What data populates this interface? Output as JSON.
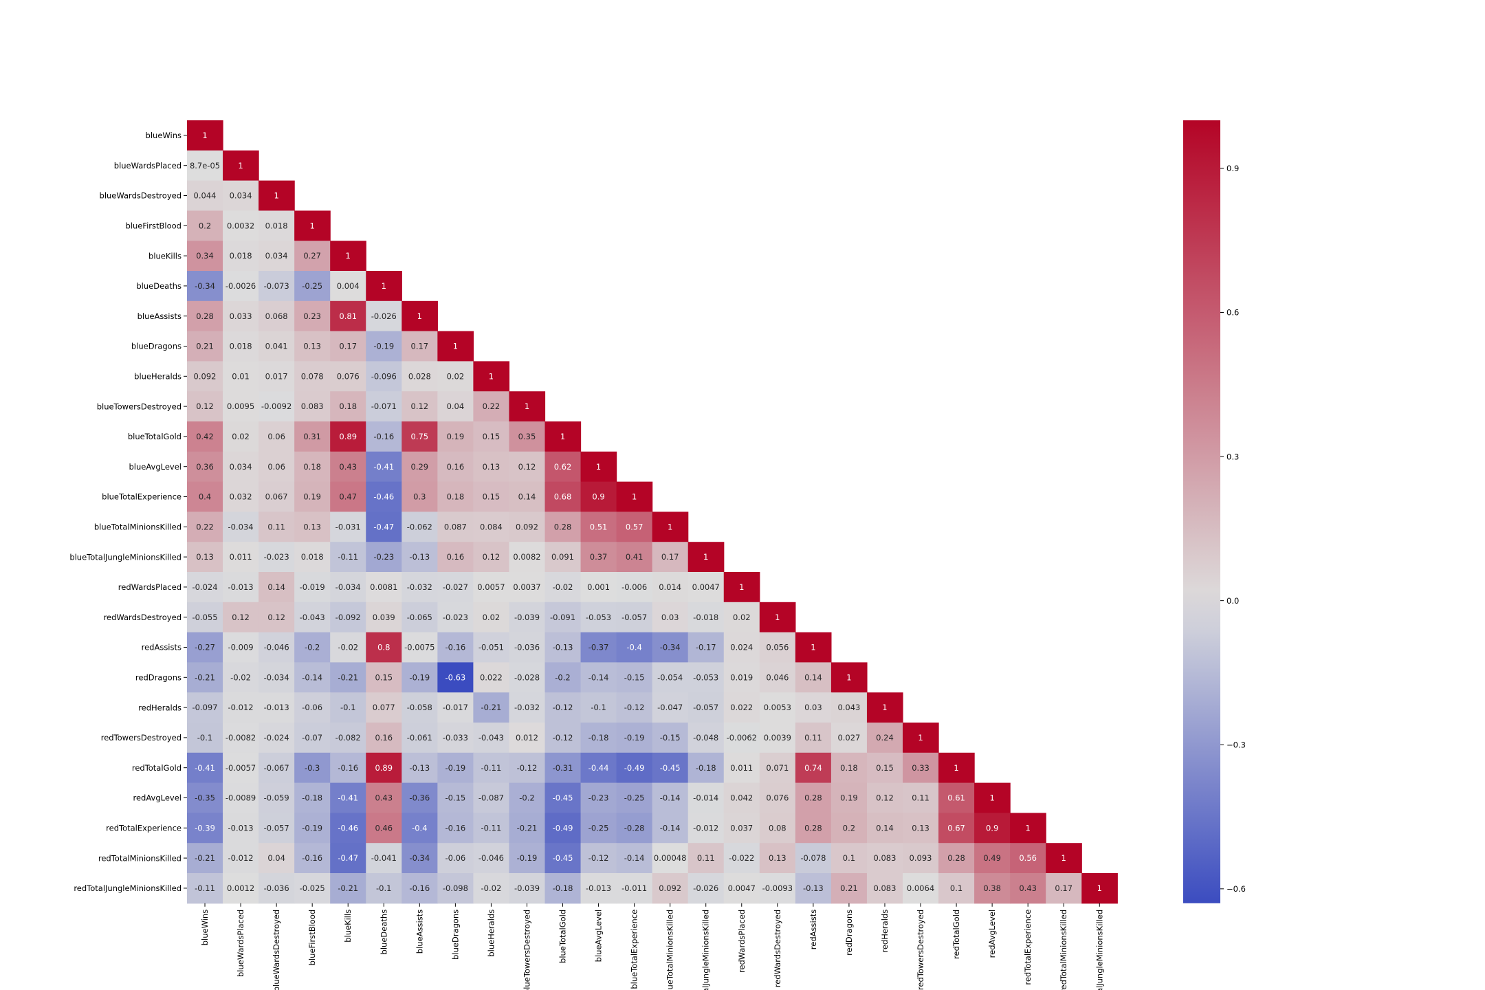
{
  "chart_data": {
    "type": "heatmap",
    "title": "",
    "xlabel": "",
    "ylabel": "",
    "mask": "upper-triangle",
    "colormap": "coolwarm",
    "colors": {
      "low": "#3b4cc0",
      "mid": "#dddddd",
      "high": "#b40426"
    },
    "color_range": [
      -0.63,
      1.0
    ],
    "colorbar_ticks": [
      {
        "value": 0.9,
        "label": "0.9"
      },
      {
        "value": 0.6,
        "label": "0.6"
      },
      {
        "value": 0.3,
        "label": "0.3"
      },
      {
        "value": 0.0,
        "label": "0.0"
      },
      {
        "value": -0.3,
        "label": "−0.3"
      },
      {
        "value": -0.6,
        "label": "−0.6"
      }
    ],
    "labels": [
      "blueWins",
      "blueWardsPlaced",
      "blueWardsDestroyed",
      "blueFirstBlood",
      "blueKills",
      "blueDeaths",
      "blueAssists",
      "blueDragons",
      "blueHeralds",
      "blueTowersDestroyed",
      "blueTotalGold",
      "blueAvgLevel",
      "blueTotalExperience",
      "blueTotalMinionsKilled",
      "blueTotalJungleMinionsKilled",
      "redWardsPlaced",
      "redWardsDestroyed",
      "redAssists",
      "redDragons",
      "redHeralds",
      "redTowersDestroyed",
      "redTotalGold",
      "redAvgLevel",
      "redTotalExperience",
      "redTotalMinionsKilled",
      "redTotalJungleMinionsKilled"
    ],
    "matrix": [
      [
        "1"
      ],
      [
        "8.7e-05",
        "1"
      ],
      [
        "0.044",
        "0.034",
        "1"
      ],
      [
        "0.2",
        "0.0032",
        "0.018",
        "1"
      ],
      [
        "0.34",
        "0.018",
        "0.034",
        "0.27",
        "1"
      ],
      [
        "-0.34",
        "-0.0026",
        "-0.073",
        "-0.25",
        "0.004",
        "1"
      ],
      [
        "0.28",
        "0.033",
        "0.068",
        "0.23",
        "0.81",
        "-0.026",
        "1"
      ],
      [
        "0.21",
        "0.018",
        "0.041",
        "0.13",
        "0.17",
        "-0.19",
        "0.17",
        "1"
      ],
      [
        "0.092",
        "0.01",
        "0.017",
        "0.078",
        "0.076",
        "-0.096",
        "0.028",
        "0.02",
        "1"
      ],
      [
        "0.12",
        "0.0095",
        "-0.0092",
        "0.083",
        "0.18",
        "-0.071",
        "0.12",
        "0.04",
        "0.22",
        "1"
      ],
      [
        "0.42",
        "0.02",
        "0.06",
        "0.31",
        "0.89",
        "-0.16",
        "0.75",
        "0.19",
        "0.15",
        "0.35",
        "1"
      ],
      [
        "0.36",
        "0.034",
        "0.06",
        "0.18",
        "0.43",
        "-0.41",
        "0.29",
        "0.16",
        "0.13",
        "0.12",
        "0.62",
        "1"
      ],
      [
        "0.4",
        "0.032",
        "0.067",
        "0.19",
        "0.47",
        "-0.46",
        "0.3",
        "0.18",
        "0.15",
        "0.14",
        "0.68",
        "0.9",
        "1"
      ],
      [
        "0.22",
        "-0.034",
        "0.11",
        "0.13",
        "-0.031",
        "-0.47",
        "-0.062",
        "0.087",
        "0.084",
        "0.092",
        "0.28",
        "0.51",
        "0.57",
        "1"
      ],
      [
        "0.13",
        "0.011",
        "-0.023",
        "0.018",
        "-0.11",
        "-0.23",
        "-0.13",
        "0.16",
        "0.12",
        "0.0082",
        "0.091",
        "0.37",
        "0.41",
        "0.17",
        "1"
      ],
      [
        "-0.024",
        "-0.013",
        "0.14",
        "-0.019",
        "-0.034",
        "0.0081",
        "-0.032",
        "-0.027",
        "0.0057",
        "0.0037",
        "-0.02",
        "0.001",
        "-0.006",
        "0.014",
        "0.0047",
        "1"
      ],
      [
        "-0.055",
        "0.12",
        "0.12",
        "-0.043",
        "-0.092",
        "0.039",
        "-0.065",
        "-0.023",
        "0.02",
        "-0.039",
        "-0.091",
        "-0.053",
        "-0.057",
        "0.03",
        "-0.018",
        "0.02",
        "1"
      ],
      [
        "-0.27",
        "-0.009",
        "-0.046",
        "-0.2",
        "-0.02",
        "0.8",
        "-0.0075",
        "-0.16",
        "-0.051",
        "-0.036",
        "-0.13",
        "-0.37",
        "-0.4",
        "-0.34",
        "-0.17",
        "0.024",
        "0.056",
        "1"
      ],
      [
        "-0.21",
        "-0.02",
        "-0.034",
        "-0.14",
        "-0.21",
        "0.15",
        "-0.19",
        "-0.63",
        "0.022",
        "-0.028",
        "-0.2",
        "-0.14",
        "-0.15",
        "-0.054",
        "-0.053",
        "0.019",
        "0.046",
        "0.14",
        "1"
      ],
      [
        "-0.097",
        "-0.012",
        "-0.013",
        "-0.06",
        "-0.1",
        "0.077",
        "-0.058",
        "-0.017",
        "-0.21",
        "-0.032",
        "-0.12",
        "-0.1",
        "-0.12",
        "-0.047",
        "-0.057",
        "0.022",
        "0.0053",
        "0.03",
        "0.043",
        "1"
      ],
      [
        "-0.1",
        "-0.0082",
        "-0.024",
        "-0.07",
        "-0.082",
        "0.16",
        "-0.061",
        "-0.033",
        "-0.043",
        "0.012",
        "-0.12",
        "-0.18",
        "-0.19",
        "-0.15",
        "-0.048",
        "-0.0062",
        "0.0039",
        "0.11",
        "0.027",
        "0.24",
        "1"
      ],
      [
        "-0.41",
        "-0.0057",
        "-0.067",
        "-0.3",
        "-0.16",
        "0.89",
        "-0.13",
        "-0.19",
        "-0.11",
        "-0.12",
        "-0.31",
        "-0.44",
        "-0.49",
        "-0.45",
        "-0.18",
        "0.011",
        "0.071",
        "0.74",
        "0.18",
        "0.15",
        "0.33",
        "1"
      ],
      [
        "-0.35",
        "-0.0089",
        "-0.059",
        "-0.18",
        "-0.41",
        "0.43",
        "-0.36",
        "-0.15",
        "-0.087",
        "-0.2",
        "-0.45",
        "-0.23",
        "-0.25",
        "-0.14",
        "-0.014",
        "0.042",
        "0.076",
        "0.28",
        "0.19",
        "0.12",
        "0.11",
        "0.61",
        "1"
      ],
      [
        "-0.39",
        "-0.013",
        "-0.057",
        "-0.19",
        "-0.46",
        "0.46",
        "-0.4",
        "-0.16",
        "-0.11",
        "-0.21",
        "-0.49",
        "-0.25",
        "-0.28",
        "-0.14",
        "-0.012",
        "0.037",
        "0.08",
        "0.28",
        "0.2",
        "0.14",
        "0.13",
        "0.67",
        "0.9",
        "1"
      ],
      [
        "-0.21",
        "-0.012",
        "0.04",
        "-0.16",
        "-0.47",
        "-0.041",
        "-0.34",
        "-0.06",
        "-0.046",
        "-0.19",
        "-0.45",
        "-0.12",
        "-0.14",
        "0.00048",
        "0.11",
        "-0.022",
        "0.13",
        "-0.078",
        "0.1",
        "0.083",
        "0.093",
        "0.28",
        "0.49",
        "0.56",
        "1"
      ],
      [
        "-0.11",
        "0.0012",
        "-0.036",
        "-0.025",
        "-0.21",
        "-0.1",
        "-0.16",
        "-0.098",
        "-0.02",
        "-0.039",
        "-0.18",
        "-0.013",
        "-0.011",
        "0.092",
        "-0.026",
        "0.0047",
        "-0.0093",
        "-0.13",
        "0.21",
        "0.083",
        "0.0064",
        "0.1",
        "0.38",
        "0.43",
        "0.17",
        "1"
      ]
    ]
  }
}
